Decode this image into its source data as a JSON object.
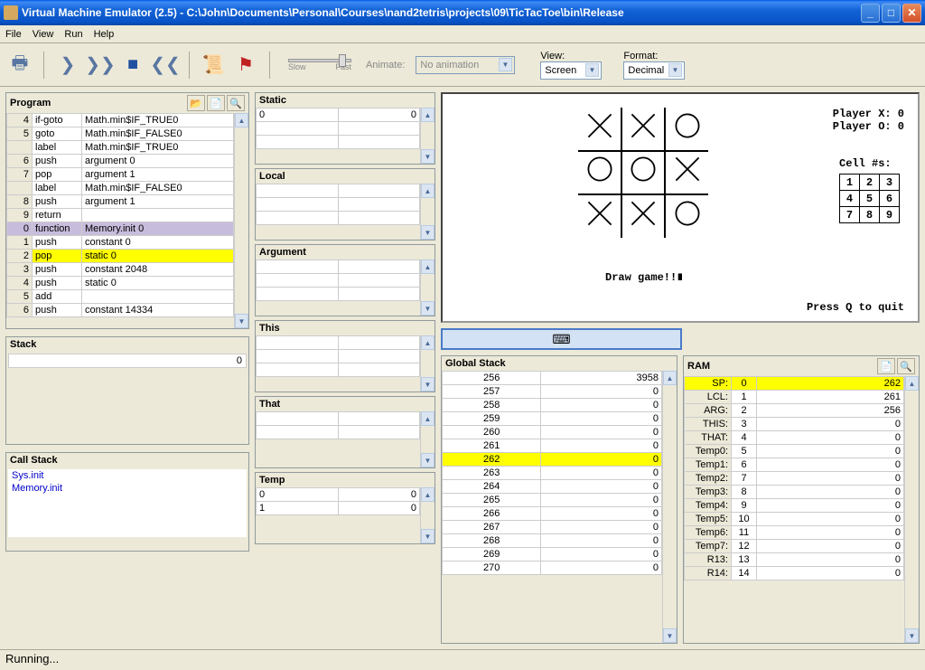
{
  "title": "Virtual Machine Emulator (2.5) - C:\\John\\Documents\\Personal\\Courses\\nand2tetris\\projects\\09\\TicTacToe\\bin\\Release",
  "menu": {
    "file": "File",
    "view": "View",
    "run": "Run",
    "help": "Help"
  },
  "toolbar": {
    "animate_label": "Animate:",
    "animate_value": "No animation",
    "view_label": "View:",
    "view_value": "Screen",
    "format_label": "Format:",
    "format_value": "Decimal",
    "slow": "Slow",
    "fast": "Fast"
  },
  "program": {
    "label": "Program",
    "rows": [
      {
        "n": "4",
        "op": "if-goto",
        "arg": "Math.min$IF_TRUE0",
        "hl": ""
      },
      {
        "n": "5",
        "op": "goto",
        "arg": "Math.min$IF_FALSE0",
        "hl": ""
      },
      {
        "n": "",
        "op": "label",
        "arg": "Math.min$IF_TRUE0",
        "hl": ""
      },
      {
        "n": "6",
        "op": "push",
        "arg": "argument 0",
        "hl": ""
      },
      {
        "n": "7",
        "op": "pop",
        "arg": "argument 1",
        "hl": ""
      },
      {
        "n": "",
        "op": "label",
        "arg": "Math.min$IF_FALSE0",
        "hl": ""
      },
      {
        "n": "8",
        "op": "push",
        "arg": "argument 1",
        "hl": ""
      },
      {
        "n": "9",
        "op": "return",
        "arg": "",
        "hl": ""
      },
      {
        "n": "0",
        "op": "function",
        "arg": "Memory.init 0",
        "hl": "purple"
      },
      {
        "n": "1",
        "op": "push",
        "arg": "constant 0",
        "hl": ""
      },
      {
        "n": "2",
        "op": "pop",
        "arg": "static 0",
        "hl": "yellow"
      },
      {
        "n": "3",
        "op": "push",
        "arg": "constant 2048",
        "hl": ""
      },
      {
        "n": "4",
        "op": "push",
        "arg": "static 0",
        "hl": ""
      },
      {
        "n": "5",
        "op": "add",
        "arg": "",
        "hl": ""
      },
      {
        "n": "6",
        "op": "push",
        "arg": "constant 14334",
        "hl": ""
      }
    ]
  },
  "stack": {
    "label": "Stack",
    "value": "0"
  },
  "callstack": {
    "label": "Call Stack",
    "items": [
      "Sys.init",
      "Memory.init"
    ]
  },
  "segments": {
    "static": {
      "label": "Static",
      "rows": [
        [
          "0",
          "0"
        ],
        [
          "",
          ""
        ],
        [
          "",
          ""
        ]
      ]
    },
    "local": {
      "label": "Local",
      "rows": [
        [
          "",
          ""
        ],
        [
          "",
          ""
        ],
        [
          "",
          ""
        ]
      ]
    },
    "argument": {
      "label": "Argument",
      "rows": [
        [
          "",
          ""
        ],
        [
          "",
          ""
        ],
        [
          "",
          ""
        ]
      ]
    },
    "this": {
      "label": "This",
      "rows": [
        [
          "",
          ""
        ],
        [
          "",
          ""
        ],
        [
          "",
          ""
        ]
      ]
    },
    "that": {
      "label": "That",
      "rows": [
        [
          "",
          ""
        ],
        [
          "",
          ""
        ]
      ]
    },
    "temp": {
      "label": "Temp",
      "rows": [
        [
          "0",
          "0"
        ],
        [
          "1",
          "0"
        ]
      ]
    }
  },
  "screen": {
    "playerX": "Player X: 0",
    "playerO": "Player O: 0",
    "cellnums_label": "Cell #s:",
    "cells": [
      [
        "1",
        "2",
        "3"
      ],
      [
        "4",
        "5",
        "6"
      ],
      [
        "7",
        "8",
        "9"
      ]
    ],
    "board": [
      [
        "X",
        "X",
        "O"
      ],
      [
        "O",
        "O",
        "X"
      ],
      [
        "X",
        "X",
        "O"
      ]
    ],
    "msg": "Draw game!!∎",
    "quit": "Press Q to quit"
  },
  "globalstack": {
    "label": "Global Stack",
    "rows": [
      {
        "addr": "256",
        "val": "3958",
        "hl": ""
      },
      {
        "addr": "257",
        "val": "0",
        "hl": ""
      },
      {
        "addr": "258",
        "val": "0",
        "hl": ""
      },
      {
        "addr": "259",
        "val": "0",
        "hl": ""
      },
      {
        "addr": "260",
        "val": "0",
        "hl": ""
      },
      {
        "addr": "261",
        "val": "0",
        "hl": ""
      },
      {
        "addr": "262",
        "val": "0",
        "hl": "yellow"
      },
      {
        "addr": "263",
        "val": "0",
        "hl": ""
      },
      {
        "addr": "264",
        "val": "0",
        "hl": ""
      },
      {
        "addr": "265",
        "val": "0",
        "hl": ""
      },
      {
        "addr": "266",
        "val": "0",
        "hl": ""
      },
      {
        "addr": "267",
        "val": "0",
        "hl": ""
      },
      {
        "addr": "268",
        "val": "0",
        "hl": ""
      },
      {
        "addr": "269",
        "val": "0",
        "hl": ""
      },
      {
        "addr": "270",
        "val": "0",
        "hl": ""
      }
    ]
  },
  "ram": {
    "label": "RAM",
    "rows": [
      {
        "lbl": "SP:",
        "addr": "0",
        "val": "262",
        "hl": "yellow"
      },
      {
        "lbl": "LCL:",
        "addr": "1",
        "val": "261",
        "hl": ""
      },
      {
        "lbl": "ARG:",
        "addr": "2",
        "val": "256",
        "hl": ""
      },
      {
        "lbl": "THIS:",
        "addr": "3",
        "val": "0",
        "hl": ""
      },
      {
        "lbl": "THAT:",
        "addr": "4",
        "val": "0",
        "hl": ""
      },
      {
        "lbl": "Temp0:",
        "addr": "5",
        "val": "0",
        "hl": ""
      },
      {
        "lbl": "Temp1:",
        "addr": "6",
        "val": "0",
        "hl": ""
      },
      {
        "lbl": "Temp2:",
        "addr": "7",
        "val": "0",
        "hl": ""
      },
      {
        "lbl": "Temp3:",
        "addr": "8",
        "val": "0",
        "hl": ""
      },
      {
        "lbl": "Temp4:",
        "addr": "9",
        "val": "0",
        "hl": ""
      },
      {
        "lbl": "Temp5:",
        "addr": "10",
        "val": "0",
        "hl": ""
      },
      {
        "lbl": "Temp6:",
        "addr": "11",
        "val": "0",
        "hl": ""
      },
      {
        "lbl": "Temp7:",
        "addr": "12",
        "val": "0",
        "hl": ""
      },
      {
        "lbl": "R13:",
        "addr": "13",
        "val": "0",
        "hl": ""
      },
      {
        "lbl": "R14:",
        "addr": "14",
        "val": "0",
        "hl": ""
      }
    ]
  },
  "status": "Running..."
}
